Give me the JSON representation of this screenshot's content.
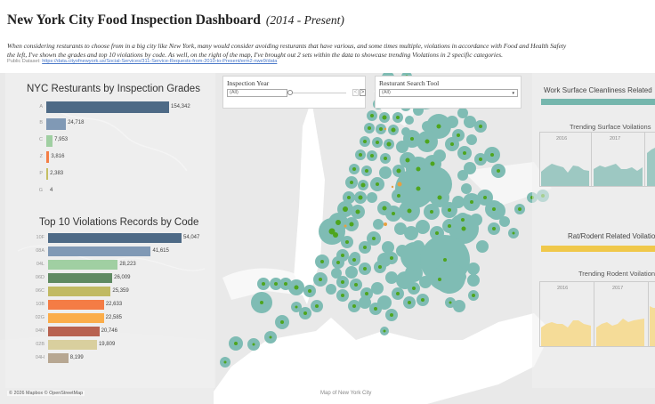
{
  "header": {
    "title": "New York City Food Inspection Dashboard",
    "subtitle": "(2014 - Present)",
    "description_line1": "When considering resturants to choose from in a big city like New York, many would consider avoiding resturants that have various, and some times multiple, violations in accordance with Food and Health Safety",
    "description_line2": "the left, I've shown the grades and top 10 violations by code. As well, on the right of the map, I've brought out 2 sets within the data to showcase trending Violations in 2 specific categories.",
    "dataset_label": "Public Dataset:",
    "dataset_link": "https://data.cityofnewyork.us/Social-Services/311-Service-Requests-from-2010-to-Present/erm2-nwe9/data"
  },
  "filters": {
    "year": {
      "title": "Inspection Year",
      "value": "(All)",
      "prev_icon": "<",
      "next_icon": ">"
    },
    "search": {
      "title": "Resturant Search Tool",
      "value": "(All)",
      "arrow": "▾"
    }
  },
  "grades_chart": {
    "title": "NYC Resturants by Inspection Grades",
    "bars": [
      {
        "label": "A",
        "value": "154,342",
        "num": 154342,
        "color": "#4e6a86"
      },
      {
        "label": "B",
        "value": "24,718",
        "num": 24718,
        "color": "#8099b5"
      },
      {
        "label": "C",
        "value": "7,953",
        "num": 7953,
        "color": "#a0cfa2"
      },
      {
        "label": "Z",
        "value": "3,816",
        "num": 3816,
        "color": "#f47e45"
      },
      {
        "label": "P",
        "value": "2,383",
        "num": 2383,
        "color": "#c5bf63"
      },
      {
        "label": "G",
        "value": "4",
        "num": 4,
        "color": "#9aa8b8"
      }
    ]
  },
  "violations_chart": {
    "title": "Top 10 Violations Records by Code",
    "bars": [
      {
        "label": "10F",
        "value": "54,047",
        "num": 54047,
        "color": "#4e6a86"
      },
      {
        "label": "08A",
        "value": "41,615",
        "num": 41615,
        "color": "#8099b5"
      },
      {
        "label": "04L",
        "value": "28,223",
        "num": 28223,
        "color": "#a0cfa2"
      },
      {
        "label": "06D",
        "value": "26,009",
        "num": 26009,
        "color": "#5f8a62"
      },
      {
        "label": "06C",
        "value": "25,359",
        "num": 25359,
        "color": "#c1ba63"
      },
      {
        "label": "10B",
        "value": "22,633",
        "num": 22633,
        "color": "#f47c45"
      },
      {
        "label": "02G",
        "value": "22,585",
        "num": 22585,
        "color": "#fbad4a"
      },
      {
        "label": "04N",
        "value": "20,746",
        "num": 20746,
        "color": "#b86250"
      },
      {
        "label": "02B",
        "value": "19,809",
        "num": 19809,
        "color": "#d9cf9e"
      },
      {
        "label": "04H",
        "value": "8,199",
        "num": 8199,
        "color": "#b7a792"
      }
    ]
  },
  "right_panel": {
    "surface": {
      "title": "Work Surface Cleanliness Related",
      "bar_color": "#75b6ad",
      "trend_title": "Trending Surface Voilations",
      "years": [
        "2016",
        "2017"
      ],
      "area_color": "#9dc8c2"
    },
    "rodent": {
      "title": "Rat/Rodent Related Voilations",
      "bar_color": "#f0c84a",
      "trend_title": "Trending Rodent Voilations",
      "years": [
        "2016",
        "2017"
      ],
      "area_color": "#f5dc98"
    }
  },
  "map": {
    "caption": "Map of New York City",
    "attribution": "© 2026 Mapbox  © OpenStreetMap",
    "circle_color": "#7fbcb4",
    "dot_color": "#4ea51e"
  }
}
